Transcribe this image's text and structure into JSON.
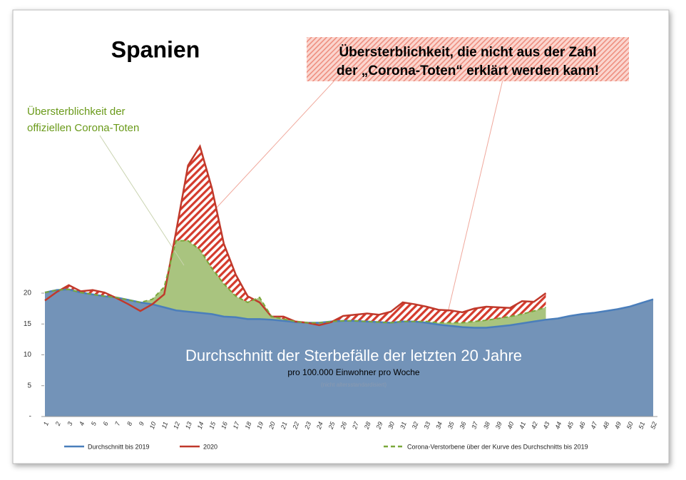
{
  "chart_data": {
    "type": "area",
    "title": "Spanien",
    "annotations": {
      "unexplained_excess": [
        "Übersterblichkeit, die nicht aus der Zahl",
        "der „Corona-Toten“ erklärt werden kann!"
      ],
      "official_excess": [
        "Übersterblichkeit der",
        "offiziellen Corona-Toten"
      ],
      "center": [
        "Durchschnitt der Sterbefälle der letzten 20 Jahre",
        "pro 100.000 Einwohner pro Woche",
        "(nicht altersstandardisiert)"
      ]
    },
    "categories": [
      "1",
      "2",
      "3",
      "4",
      "5",
      "6",
      "7",
      "8",
      "9",
      "10",
      "11",
      "12",
      "13",
      "14",
      "15",
      "16",
      "17",
      "18",
      "19",
      "20",
      "21",
      "22",
      "23",
      "24",
      "25",
      "26",
      "27",
      "28",
      "29",
      "30",
      "31",
      "32",
      "33",
      "34",
      "35",
      "36",
      "37",
      "38",
      "39",
      "40",
      "41",
      "42",
      "43",
      "44",
      "45",
      "46",
      "47",
      "48",
      "49",
      "50",
      "51",
      "52"
    ],
    "ylim": [
      0,
      60
    ],
    "yticks": [
      {
        "value": 0,
        "label": "-"
      },
      5,
      10,
      15,
      20
    ],
    "grid": false,
    "legend": "bottom",
    "series": [
      {
        "name": "Durchschnitt bis 2019",
        "color": "#4a7ebb",
        "fill": "#7393b8",
        "values": [
          20.1,
          20.5,
          20.6,
          20.1,
          19.8,
          19.5,
          19.3,
          18.9,
          18.5,
          18.2,
          17.7,
          17.2,
          17.0,
          16.8,
          16.6,
          16.2,
          16.1,
          15.8,
          15.8,
          15.7,
          15.5,
          15.3,
          15.2,
          15.2,
          15.4,
          15.5,
          15.5,
          15.4,
          15.3,
          15.2,
          15.4,
          15.4,
          15.2,
          14.9,
          14.7,
          14.5,
          14.4,
          14.4,
          14.6,
          14.8,
          15.1,
          15.4,
          15.7,
          15.9,
          16.3,
          16.6,
          16.8,
          17.1,
          17.4,
          17.8,
          18.4,
          19.0
        ]
      },
      {
        "name": "2020",
        "color": "#c0392b",
        "fill": "hatch",
        "values": [
          18.8,
          20.2,
          21.3,
          20.3,
          20.5,
          20.1,
          19.2,
          18.2,
          17.1,
          18.2,
          19.8,
          30.0,
          40.7,
          43.8,
          37.0,
          28.0,
          23.0,
          19.5,
          18.5,
          16.2,
          16.2,
          15.4,
          15.2,
          14.8,
          15.3,
          16.3,
          16.5,
          16.7,
          16.5,
          17.0,
          18.5,
          18.2,
          17.8,
          17.3,
          17.2,
          16.9,
          17.5,
          17.8,
          17.7,
          17.6,
          18.7,
          18.6,
          20.0,
          null,
          null,
          null,
          null,
          null,
          null,
          null,
          null,
          null
        ]
      },
      {
        "name": "Corona-Verstorbene über der Kurve des Durchschnitts bis 2019",
        "color": "#7aa83a",
        "fill": "#a9c47f",
        "values": [
          20.1,
          20.5,
          20.6,
          20.1,
          19.8,
          19.5,
          19.3,
          18.9,
          18.5,
          19.0,
          21.0,
          28.5,
          28.5,
          27.0,
          24.0,
          21.5,
          19.5,
          18.5,
          19.3,
          16.2,
          15.8,
          15.4,
          15.2,
          15.2,
          15.4,
          15.5,
          15.5,
          15.4,
          15.3,
          15.2,
          15.4,
          15.4,
          15.4,
          15.2,
          15.2,
          15.2,
          15.4,
          15.6,
          15.9,
          16.2,
          16.6,
          17.1,
          17.7,
          null,
          null,
          null,
          null,
          null,
          null,
          null,
          null,
          null
        ]
      }
    ]
  }
}
